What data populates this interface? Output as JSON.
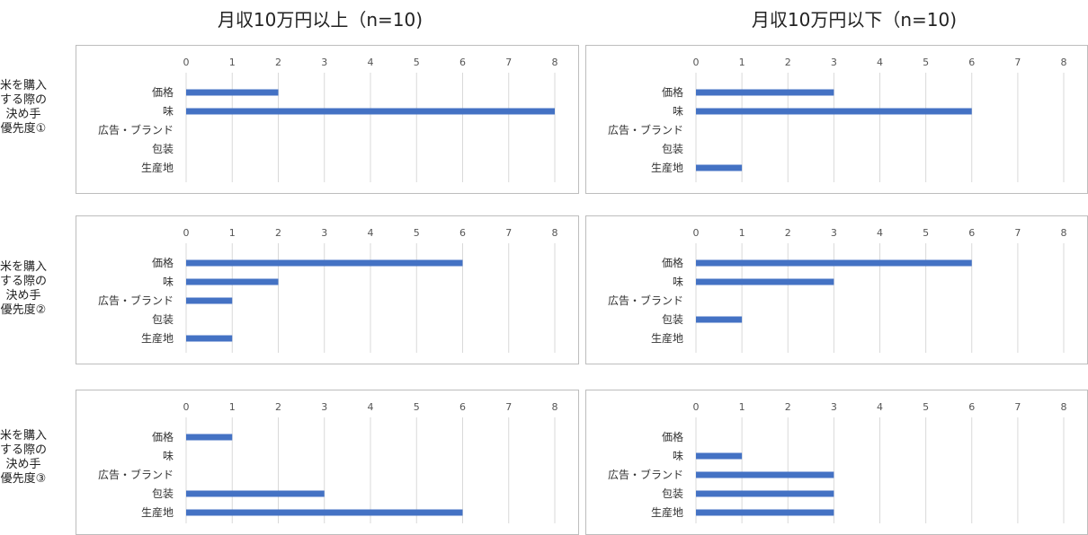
{
  "columns": [
    "月収10万円以上（n=10)",
    "月収10万円以下（n=10)"
  ],
  "rows": [
    [
      "米を購入",
      "する際の",
      "決め手",
      "優先度①"
    ],
    [
      "米を購入",
      "する際の",
      "決め手",
      "優先度②"
    ],
    [
      "米を購入",
      "する際の",
      "決め手",
      "優先度③"
    ]
  ],
  "style": {
    "bar_color": "#4472c4",
    "grid_color": "#d9d9d9"
  },
  "chart_data": [
    {
      "type": "bar",
      "orientation": "horizontal",
      "categories": [
        "価格",
        "味",
        "広告・ブランド",
        "包装",
        "生産地"
      ],
      "values": [
        2,
        8,
        0,
        0,
        0
      ],
      "xlim": [
        0,
        8
      ],
      "xticks": [
        0,
        1,
        2,
        3,
        4,
        5,
        6,
        7,
        8
      ]
    },
    {
      "type": "bar",
      "orientation": "horizontal",
      "categories": [
        "価格",
        "味",
        "広告・ブランド",
        "包装",
        "生産地"
      ],
      "values": [
        3,
        6,
        0,
        0,
        1
      ],
      "xlim": [
        0,
        8
      ],
      "xticks": [
        0,
        1,
        2,
        3,
        4,
        5,
        6,
        7,
        8
      ]
    },
    {
      "type": "bar",
      "orientation": "horizontal",
      "categories": [
        "価格",
        "味",
        "広告・ブランド",
        "包装",
        "生産地"
      ],
      "values": [
        6,
        2,
        1,
        0,
        1
      ],
      "xlim": [
        0,
        8
      ],
      "xticks": [
        0,
        1,
        2,
        3,
        4,
        5,
        6,
        7,
        8
      ]
    },
    {
      "type": "bar",
      "orientation": "horizontal",
      "categories": [
        "価格",
        "味",
        "広告・ブランド",
        "包装",
        "生産地"
      ],
      "values": [
        6,
        3,
        0,
        1,
        0
      ],
      "xlim": [
        0,
        8
      ],
      "xticks": [
        0,
        1,
        2,
        3,
        4,
        5,
        6,
        7,
        8
      ]
    },
    {
      "type": "bar",
      "orientation": "horizontal",
      "categories": [
        "価格",
        "味",
        "広告・ブランド",
        "包装",
        "生産地"
      ],
      "values": [
        1,
        0,
        0,
        3,
        6
      ],
      "xlim": [
        0,
        8
      ],
      "xticks": [
        0,
        1,
        2,
        3,
        4,
        5,
        6,
        7,
        8
      ]
    },
    {
      "type": "bar",
      "orientation": "horizontal",
      "categories": [
        "価格",
        "味",
        "広告・ブランド",
        "包装",
        "生産地"
      ],
      "values": [
        0,
        1,
        3,
        3,
        3
      ],
      "xlim": [
        0,
        8
      ],
      "xticks": [
        0,
        1,
        2,
        3,
        4,
        5,
        6,
        7,
        8
      ]
    }
  ]
}
